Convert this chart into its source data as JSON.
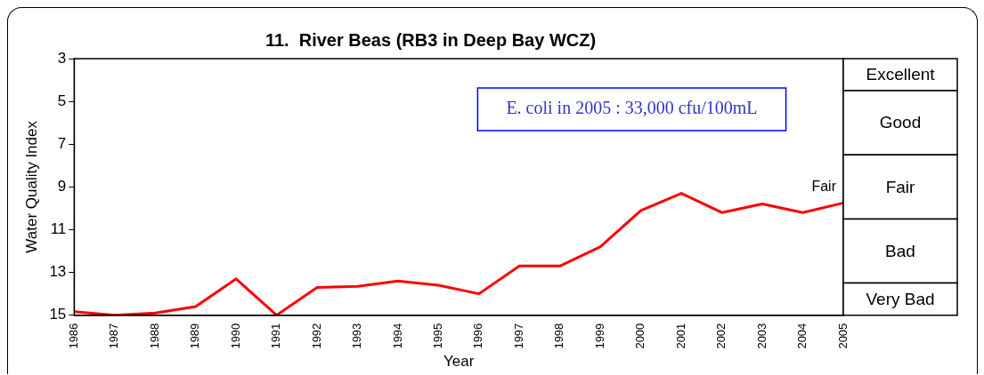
{
  "chart_data": {
    "type": "line",
    "title": "11.  River Beas (RB3 in Deep Bay WCZ)",
    "xlabel": "Year",
    "ylabel": "Water Quality Index",
    "categories": [
      "1986",
      "1987",
      "1988",
      "1989",
      "1990",
      "1991",
      "1992",
      "1993",
      "1994",
      "1995",
      "1996",
      "1997",
      "1998",
      "1999",
      "2000",
      "2001",
      "2002",
      "2003",
      "2004",
      "2005"
    ],
    "series": [
      {
        "color": "#ff0000",
        "values": [
          14.84,
          15,
          14.9,
          14.6,
          13.3,
          15,
          13.7,
          13.65,
          13.4,
          13.6,
          14.0,
          12.7,
          12.7,
          11.8,
          10.1,
          9.3,
          10.2,
          9.8,
          10.2,
          9.75
        ]
      }
    ],
    "ylim": [
      15,
      3
    ],
    "yticks": [
      3,
      5,
      7,
      9,
      11,
      13,
      15
    ],
    "bands": [
      {
        "axis": "y",
        "from": 3,
        "to": 4.5,
        "label": "Excellent",
        "color": "#ffffff"
      },
      {
        "axis": "y",
        "from": 4.5,
        "to": 7.5,
        "label": "Good",
        "color": "#ffffff"
      },
      {
        "axis": "y",
        "from": 7.5,
        "to": 10.5,
        "label": "Fair",
        "color": "#ffffff"
      },
      {
        "axis": "y",
        "from": 10.5,
        "to": 13.5,
        "label": "Bad",
        "color": "#ffffff"
      },
      {
        "axis": "y",
        "from": 13.5,
        "to": 15,
        "label": "Very Bad",
        "color": "#ffffff"
      }
    ],
    "annotations": [
      "E. coli in 2005 : 33,000 cfu/100mL",
      "Fair"
    ],
    "grid": false,
    "legend": false,
    "marker": "none",
    "line_style": "solid"
  }
}
